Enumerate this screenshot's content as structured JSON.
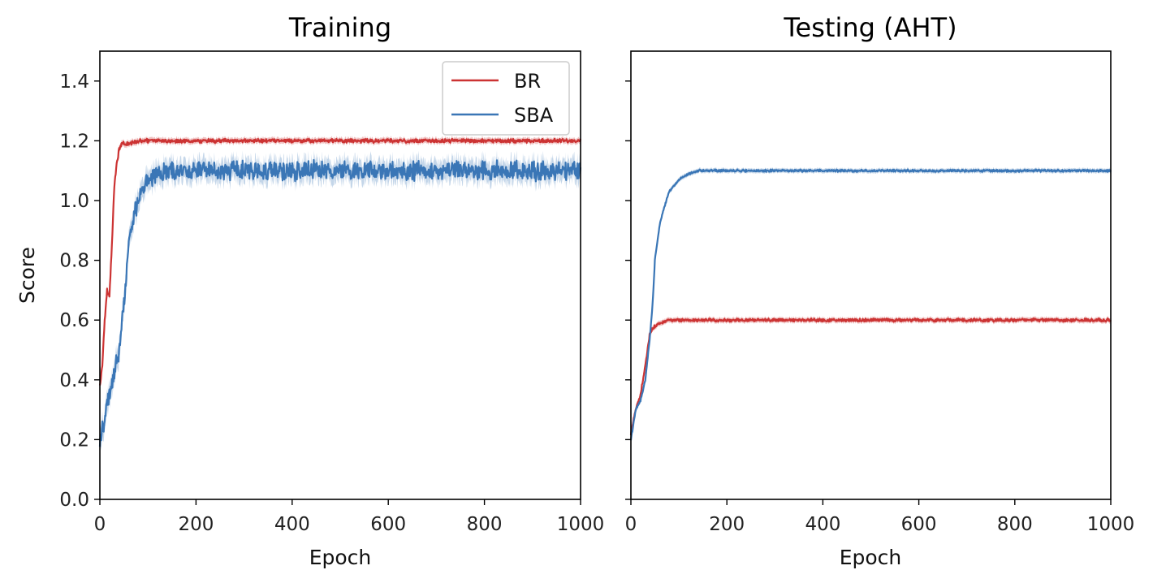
{
  "chart_data": [
    {
      "type": "line",
      "title": "Training",
      "xlabel": "Epoch",
      "ylabel": "Score",
      "xlim": [
        0,
        1000
      ],
      "ylim": [
        0,
        1.5
      ],
      "x_ticks": [
        "0",
        "200",
        "400",
        "600",
        "800",
        "1000"
      ],
      "x_tick_values": [
        0,
        200,
        400,
        600,
        800,
        1000
      ],
      "y_ticks": [
        "0.0",
        "0.2",
        "0.4",
        "0.6",
        "0.8",
        "1.0",
        "1.2",
        "1.4"
      ],
      "y_tick_values": [
        0,
        0.2,
        0.4,
        0.6,
        0.8,
        1.0,
        1.2,
        1.4
      ],
      "legend": {
        "location": "top-right",
        "entries": [
          "BR",
          "SBA"
        ]
      },
      "series": [
        {
          "name": "BR",
          "color": "#cc3333",
          "x": [
            0,
            5,
            10,
            15,
            20,
            25,
            30,
            35,
            40,
            45,
            50,
            60,
            80,
            100,
            1000
          ],
          "y": [
            0.38,
            0.45,
            0.6,
            0.7,
            0.68,
            0.85,
            1.05,
            1.12,
            1.17,
            1.19,
            1.19,
            1.19,
            1.2,
            1.2,
            1.2
          ],
          "noise": 0.005
        },
        {
          "name": "SBA",
          "color": "#3a76b6",
          "x": [
            0,
            10,
            20,
            30,
            40,
            50,
            60,
            70,
            80,
            90,
            100,
            120,
            150,
            200,
            1000
          ],
          "y": [
            0.18,
            0.28,
            0.35,
            0.42,
            0.5,
            0.65,
            0.85,
            0.95,
            1.0,
            1.04,
            1.07,
            1.09,
            1.1,
            1.1,
            1.1
          ],
          "noise": 0.025
        }
      ]
    },
    {
      "type": "line",
      "title": "Testing (AHT)",
      "xlabel": "Epoch",
      "xlim": [
        0,
        1000
      ],
      "ylim": [
        0,
        1.5
      ],
      "x_ticks": [
        "0",
        "200",
        "400",
        "600",
        "800",
        "1000"
      ],
      "x_tick_values": [
        0,
        200,
        400,
        600,
        800,
        1000
      ],
      "y_tick_values": [
        0,
        0.2,
        0.4,
        0.6,
        0.8,
        1.0,
        1.2,
        1.4
      ],
      "series": [
        {
          "name": "BR",
          "color": "#cc3333",
          "x": [
            0,
            10,
            20,
            30,
            40,
            50,
            60,
            80,
            100,
            1000
          ],
          "y": [
            0.22,
            0.3,
            0.35,
            0.45,
            0.56,
            0.58,
            0.59,
            0.6,
            0.6,
            0.6
          ],
          "noise": 0.004
        },
        {
          "name": "SBA",
          "color": "#3a76b6",
          "x": [
            0,
            10,
            20,
            30,
            40,
            45,
            50,
            60,
            70,
            80,
            100,
            120,
            140,
            1000
          ],
          "y": [
            0.2,
            0.3,
            0.33,
            0.4,
            0.55,
            0.65,
            0.8,
            0.92,
            0.98,
            1.03,
            1.07,
            1.09,
            1.1,
            1.1
          ],
          "noise": 0.003
        }
      ]
    }
  ]
}
